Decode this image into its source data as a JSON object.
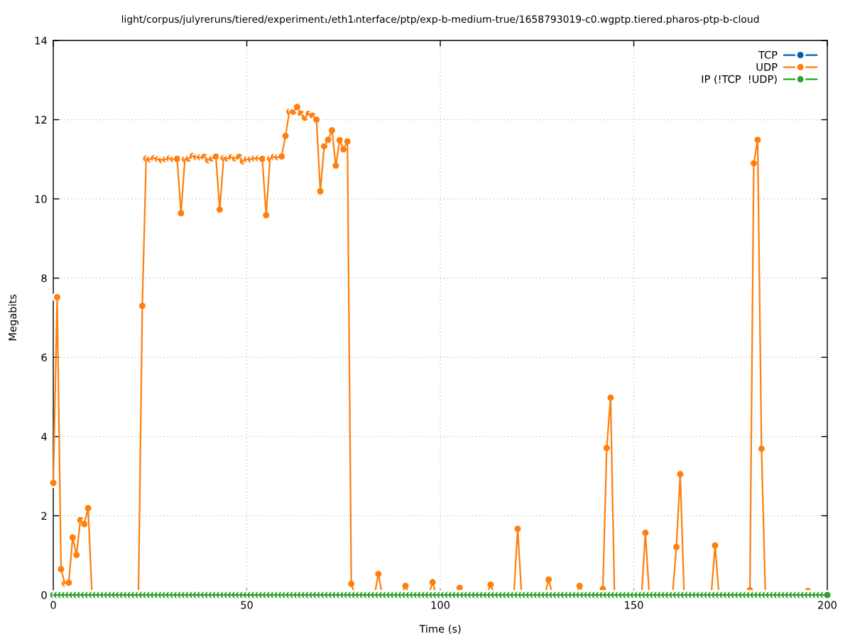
{
  "chart_data": {
    "type": "line",
    "title": "light/corpus/julyreruns/tiered/experiment₁/eth1ᵢnterface/ptp/exp-b-medium-true/1658793019-c0.wgptp.tiered.pharos-ptp-b-cloud",
    "xlabel": "Time (s)",
    "ylabel": "Megabits",
    "xlim": [
      0,
      200
    ],
    "ylim": [
      0,
      14
    ],
    "xticks": [
      0,
      50,
      100,
      150,
      200
    ],
    "yticks": [
      0,
      2,
      4,
      6,
      8,
      10,
      12,
      14
    ],
    "grid": true,
    "legend": "top right",
    "marker": "circle",
    "line_style": "solid",
    "x": [
      0,
      1,
      2,
      3,
      4,
      5,
      6,
      7,
      8,
      9,
      10,
      11,
      12,
      13,
      14,
      15,
      16,
      17,
      18,
      19,
      20,
      21,
      22,
      23,
      24,
      25,
      26,
      27,
      28,
      29,
      30,
      31,
      32,
      33,
      34,
      35,
      36,
      37,
      38,
      39,
      40,
      41,
      42,
      43,
      44,
      45,
      46,
      47,
      48,
      49,
      50,
      51,
      52,
      53,
      54,
      55,
      56,
      57,
      58,
      59,
      60,
      61,
      62,
      63,
      64,
      65,
      66,
      67,
      68,
      69,
      70,
      71,
      72,
      73,
      74,
      75,
      76,
      77,
      78,
      79,
      80,
      81,
      82,
      83,
      84,
      85,
      86,
      87,
      88,
      89,
      90,
      91,
      92,
      93,
      94,
      95,
      96,
      97,
      98,
      99,
      100,
      101,
      102,
      103,
      104,
      105,
      106,
      107,
      108,
      109,
      110,
      111,
      112,
      113,
      114,
      115,
      116,
      117,
      118,
      119,
      120,
      121,
      122,
      123,
      124,
      125,
      126,
      127,
      128,
      129,
      130,
      131,
      132,
      133,
      134,
      135,
      136,
      137,
      138,
      139,
      140,
      141,
      142,
      143,
      144,
      145,
      146,
      147,
      148,
      149,
      150,
      151,
      152,
      153,
      154,
      155,
      156,
      157,
      158,
      159,
      160,
      161,
      162,
      163,
      164,
      165,
      166,
      167,
      168,
      169,
      170,
      171,
      172,
      173,
      174,
      175,
      176,
      177,
      178,
      179,
      180,
      181,
      182,
      183,
      184,
      185,
      186,
      187,
      188,
      189,
      190,
      191,
      192,
      193,
      194,
      195,
      196,
      197,
      198,
      199,
      200
    ],
    "series": [
      {
        "name": "TCP",
        "color": "#0060ad",
        "values": [
          null,
          null,
          null,
          null,
          null,
          null,
          null,
          null,
          null,
          null,
          null,
          null,
          null,
          null,
          null,
          null,
          null,
          null,
          null,
          null,
          null,
          null,
          null,
          null,
          null,
          null,
          null,
          null,
          null,
          null,
          null,
          null,
          null,
          null,
          null,
          null,
          null,
          null,
          null,
          null,
          null,
          null,
          null,
          null,
          null,
          null,
          null,
          null,
          null,
          null,
          null,
          null,
          null,
          null,
          null,
          null,
          null,
          null,
          null,
          null,
          null,
          null,
          null,
          null,
          null,
          null,
          null,
          null,
          null,
          null,
          null,
          null,
          null,
          null,
          null,
          null,
          null,
          null,
          null,
          null,
          null,
          null,
          null,
          null,
          null,
          null,
          null,
          null,
          null,
          null,
          null,
          null,
          null,
          null,
          null,
          null,
          null,
          null,
          null,
          null,
          null,
          null,
          null,
          null,
          null,
          null,
          null,
          null,
          null,
          null,
          null,
          null,
          null,
          null,
          null,
          null,
          null,
          null,
          null,
          null,
          null,
          null,
          null,
          null,
          null,
          null,
          null,
          null,
          null,
          null,
          null,
          null,
          null,
          null,
          null,
          null,
          null,
          null,
          null,
          null,
          null,
          null,
          null,
          null,
          null,
          null,
          null,
          null,
          null,
          null,
          null,
          null,
          null,
          null,
          null,
          null,
          null,
          null,
          null,
          null,
          null,
          null,
          null,
          null,
          null,
          null,
          null,
          null,
          null,
          null,
          null,
          null,
          null,
          null,
          null,
          null,
          null,
          null,
          null,
          null,
          null,
          null,
          null,
          null,
          null,
          null,
          null,
          null,
          null,
          null,
          null,
          null,
          null,
          null,
          null,
          null,
          null,
          null,
          null,
          null,
          null
        ]
      },
      {
        "name": "UDP",
        "color": "#ff7f0e",
        "values": [
          2.83,
          7.52,
          0.65,
          0.29,
          0.31,
          1.45,
          1.01,
          1.89,
          1.79,
          2.19,
          0,
          null,
          null,
          null,
          null,
          null,
          null,
          null,
          null,
          null,
          null,
          null,
          0,
          7.3,
          11.02,
          11.0,
          11.03,
          11.0,
          10.98,
          11.0,
          11.02,
          11.0,
          11.01,
          9.64,
          11.0,
          11.02,
          11.08,
          11.05,
          11.05,
          11.06,
          10.98,
          11.02,
          11.07,
          9.73,
          11.03,
          11.02,
          11.05,
          11.02,
          11.06,
          10.95,
          11.0,
          11.0,
          11.02,
          11.02,
          11.01,
          9.59,
          11.02,
          11.06,
          11.05,
          11.07,
          11.59,
          12.2,
          12.2,
          12.32,
          12.15,
          12.05,
          12.15,
          12.1,
          12.0,
          10.19,
          11.33,
          11.49,
          11.73,
          10.84,
          11.48,
          11.25,
          11.45,
          0.28,
          0,
          null,
          null,
          null,
          null,
          0,
          0.53,
          0,
          null,
          null,
          null,
          null,
          0,
          0.23,
          0,
          null,
          null,
          null,
          null,
          0,
          0.32,
          0,
          null,
          null,
          null,
          null,
          0,
          0.18,
          0,
          null,
          null,
          null,
          null,
          null,
          0,
          0.26,
          0,
          null,
          null,
          null,
          null,
          0,
          1.67,
          0,
          null,
          null,
          null,
          null,
          null,
          0,
          0.39,
          0,
          null,
          null,
          null,
          null,
          null,
          0,
          0.23,
          0,
          null,
          null,
          null,
          0,
          0.15,
          3.71,
          4.98,
          0,
          null,
          null,
          null,
          null,
          null,
          null,
          0,
          1.57,
          0,
          null,
          null,
          null,
          null,
          null,
          0,
          1.21,
          3.05,
          0,
          null,
          null,
          null,
          null,
          null,
          null,
          0,
          1.25,
          0,
          null,
          null,
          null,
          null,
          null,
          null,
          0,
          0.12,
          10.9,
          11.49,
          3.69,
          0,
          null,
          null,
          null,
          null,
          null,
          null,
          null,
          null,
          null,
          0,
          0.1,
          0,
          null,
          null,
          null,
          null
        ]
      },
      {
        "name": "IP (!TCP  !UDP)",
        "color": "#2ca02c",
        "values": [
          0,
          0,
          0,
          0,
          0,
          0,
          0,
          0,
          0,
          0,
          0,
          0,
          0,
          0,
          0,
          0,
          0,
          0,
          0,
          0,
          0,
          0,
          0,
          0,
          0,
          0,
          0,
          0,
          0,
          0,
          0,
          0,
          0,
          0,
          0,
          0,
          0,
          0,
          0,
          0,
          0,
          0,
          0,
          0,
          0,
          0,
          0,
          0,
          0,
          0,
          0,
          0,
          0,
          0,
          0,
          0,
          0,
          0,
          0,
          0,
          0,
          0,
          0,
          0,
          0,
          0,
          0,
          0,
          0,
          0,
          0,
          0,
          0,
          0,
          0,
          0,
          0,
          0,
          0,
          0,
          0,
          0,
          0,
          0,
          0,
          0,
          0,
          0,
          0,
          0,
          0,
          0,
          0,
          0,
          0,
          0,
          0,
          0,
          0,
          0,
          0,
          0,
          0,
          0,
          0,
          0,
          0,
          0,
          0,
          0,
          0,
          0,
          0,
          0,
          0,
          0,
          0,
          0,
          0,
          0,
          0,
          0,
          0,
          0,
          0,
          0,
          0,
          0,
          0,
          0,
          0,
          0,
          0,
          0,
          0,
          0,
          0,
          0,
          0,
          0,
          0,
          0,
          0,
          0,
          0,
          0,
          0,
          0,
          0,
          0,
          0,
          0,
          0,
          0,
          0,
          0,
          0,
          0,
          0,
          0,
          0,
          0,
          0,
          0,
          0,
          0,
          0,
          0,
          0,
          0,
          0,
          0,
          0,
          0,
          0,
          0,
          0,
          0,
          0,
          0,
          0,
          0,
          0,
          0,
          0,
          0,
          0,
          0,
          0,
          0,
          0,
          0,
          0,
          0,
          0,
          0,
          0,
          0,
          0,
          0,
          0
        ]
      }
    ]
  }
}
